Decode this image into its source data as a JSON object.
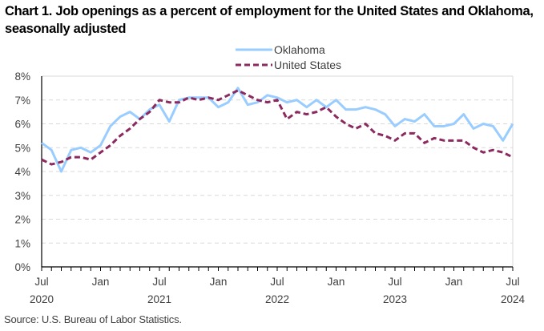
{
  "title": "Chart 1. Job openings as a percent of employment for the United States and Oklahoma, seasonally adjusted",
  "source": "Source: U.S. Bureau of Labor Statistics.",
  "colors": {
    "oklahoma": "#99CCFF",
    "united_states": "#8B2A5E",
    "grid": "#D9D9D9",
    "axis": "#000000"
  },
  "chart_data": {
    "type": "line",
    "title": "Chart 1. Job openings as a percent of employment for the United States and Oklahoma, seasonally adjusted",
    "xlabel": "",
    "ylabel": "",
    "ylim": [
      0,
      8
    ],
    "yticks": [
      "0%",
      "1%",
      "2%",
      "3%",
      "4%",
      "5%",
      "6%",
      "7%",
      "8%"
    ],
    "grid": true,
    "legend": "top-center",
    "x_start": "Jul 2020",
    "x_end": "Jul 2024",
    "x": [
      "Jul 2020",
      "Aug 2020",
      "Sep 2020",
      "Oct 2020",
      "Nov 2020",
      "Dec 2020",
      "Jan 2021",
      "Feb 2021",
      "Mar 2021",
      "Apr 2021",
      "May 2021",
      "Jun 2021",
      "Jul 2021",
      "Aug 2021",
      "Sep 2021",
      "Oct 2021",
      "Nov 2021",
      "Dec 2021",
      "Jan 2022",
      "Feb 2022",
      "Mar 2022",
      "Apr 2022",
      "May 2022",
      "Jun 2022",
      "Jul 2022",
      "Aug 2022",
      "Sep 2022",
      "Oct 2022",
      "Nov 2022",
      "Dec 2022",
      "Jan 2023",
      "Feb 2023",
      "Mar 2023",
      "Apr 2023",
      "May 2023",
      "Jun 2023",
      "Jul 2023",
      "Aug 2023",
      "Sep 2023",
      "Oct 2023",
      "Nov 2023",
      "Dec 2023",
      "Jan 2024",
      "Feb 2024",
      "Mar 2024",
      "Apr 2024",
      "May 2024",
      "Jun 2024",
      "Jul 2024"
    ],
    "xtick_labels": [
      {
        "month": "Jul",
        "year": "2020"
      },
      {
        "month": "Jan",
        "year": ""
      },
      {
        "month": "Jul",
        "year": "2021"
      },
      {
        "month": "Jan",
        "year": ""
      },
      {
        "month": "Jul",
        "year": "2022"
      },
      {
        "month": "Jan",
        "year": ""
      },
      {
        "month": "Jul",
        "year": "2023"
      },
      {
        "month": "Jan",
        "year": ""
      },
      {
        "month": "Jul",
        "year": "2024"
      }
    ],
    "series": [
      {
        "name": "Oklahoma",
        "style": "solid",
        "values": [
          5.2,
          4.9,
          4.0,
          4.9,
          5.0,
          4.8,
          5.1,
          5.9,
          6.3,
          6.5,
          6.2,
          6.6,
          6.8,
          6.1,
          7.0,
          7.1,
          7.1,
          7.1,
          6.7,
          6.9,
          7.5,
          6.8,
          6.9,
          7.2,
          7.1,
          6.9,
          7.0,
          6.7,
          7.0,
          6.7,
          7.0,
          6.6,
          6.6,
          6.7,
          6.6,
          6.4,
          5.9,
          6.2,
          6.1,
          6.4,
          5.9,
          5.9,
          6.0,
          6.4,
          5.8,
          6.0,
          5.9,
          5.3,
          6.0
        ]
      },
      {
        "name": "United States",
        "style": "dashed",
        "values": [
          4.5,
          4.3,
          4.4,
          4.6,
          4.6,
          4.5,
          4.8,
          5.1,
          5.5,
          5.8,
          6.2,
          6.5,
          7.0,
          6.9,
          6.9,
          7.1,
          7.0,
          7.1,
          7.0,
          7.2,
          7.4,
          7.2,
          7.0,
          6.9,
          7.0,
          6.2,
          6.5,
          6.4,
          6.5,
          6.7,
          6.3,
          6.0,
          5.8,
          6.0,
          5.6,
          5.5,
          5.3,
          5.6,
          5.6,
          5.2,
          5.4,
          5.3,
          5.3,
          5.3,
          5.0,
          4.8,
          4.9,
          4.8,
          4.6
        ]
      }
    ]
  }
}
